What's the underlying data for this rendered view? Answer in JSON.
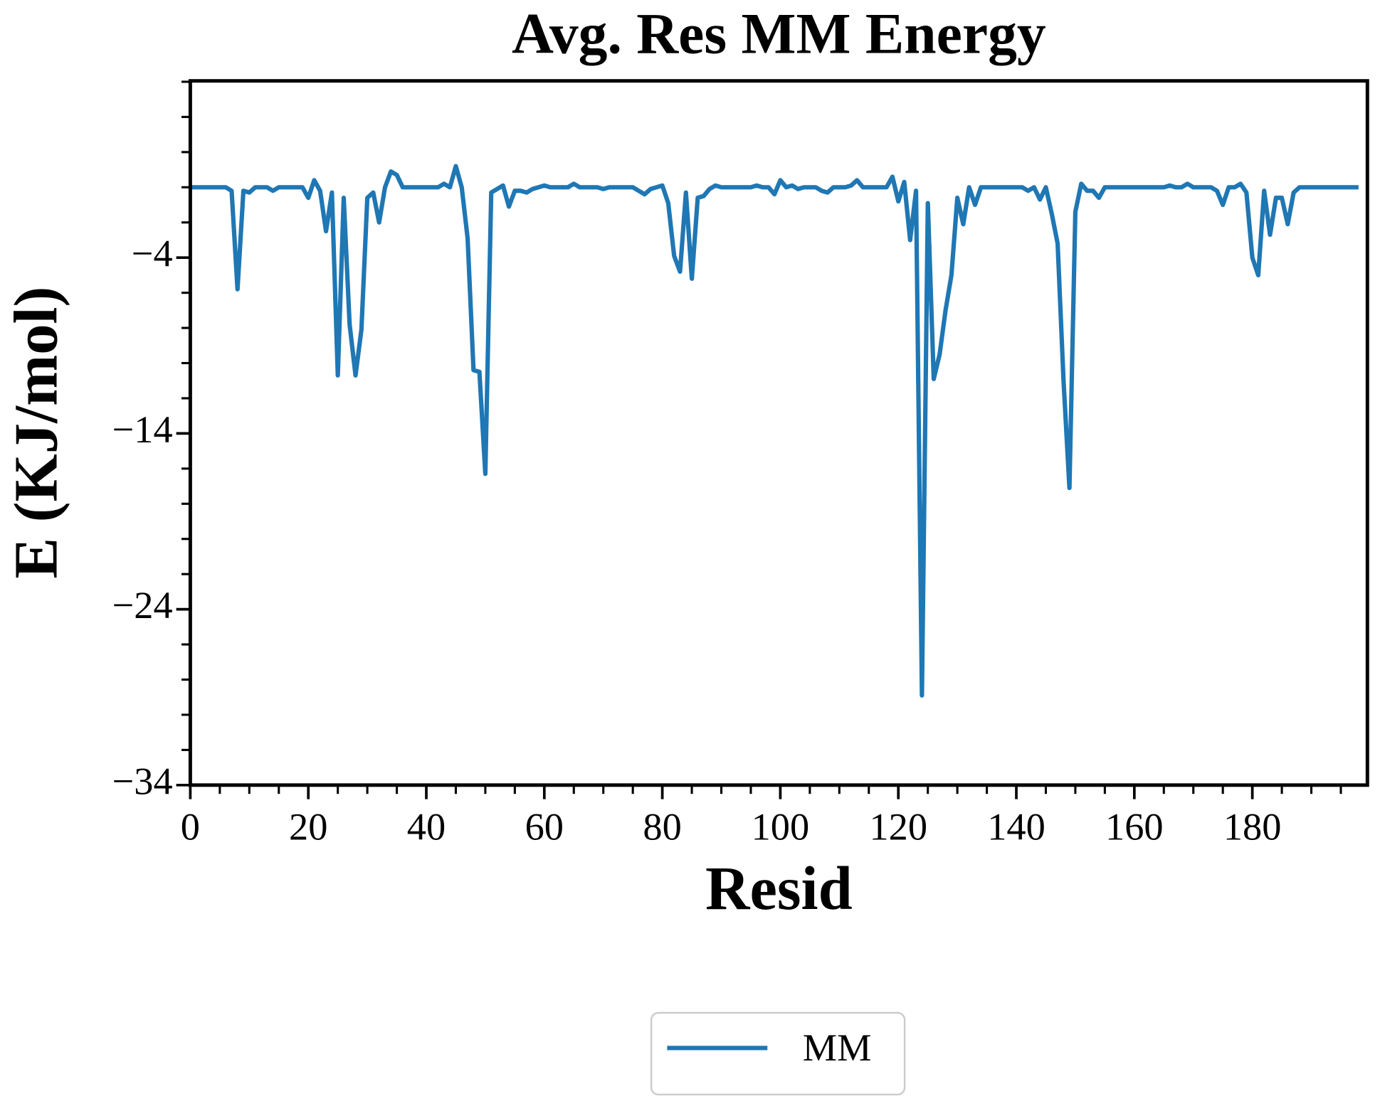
{
  "chart_data": {
    "type": "line",
    "title": "Avg. Res MM Energy",
    "x_label": "Resid",
    "y_label": "E (KJ/mol)",
    "x": [
      0,
      1,
      2,
      3,
      4,
      5,
      6,
      7,
      8,
      9,
      10,
      11,
      12,
      13,
      14,
      15,
      16,
      17,
      18,
      19,
      20,
      21,
      22,
      23,
      24,
      25,
      26,
      27,
      28,
      29,
      30,
      31,
      32,
      33,
      34,
      35,
      36,
      37,
      38,
      39,
      40,
      41,
      42,
      43,
      44,
      45,
      46,
      47,
      48,
      49,
      50,
      51,
      52,
      53,
      54,
      55,
      56,
      57,
      58,
      59,
      60,
      61,
      62,
      63,
      64,
      65,
      66,
      67,
      68,
      69,
      70,
      71,
      72,
      73,
      74,
      75,
      76,
      77,
      78,
      79,
      80,
      81,
      82,
      83,
      84,
      85,
      86,
      87,
      88,
      89,
      90,
      91,
      92,
      93,
      94,
      95,
      96,
      97,
      98,
      99,
      100,
      101,
      102,
      103,
      104,
      105,
      106,
      107,
      108,
      109,
      110,
      111,
      112,
      113,
      114,
      115,
      116,
      117,
      118,
      119,
      120,
      121,
      122,
      123,
      124,
      125,
      126,
      127,
      128,
      129,
      130,
      131,
      132,
      133,
      134,
      135,
      136,
      137,
      138,
      139,
      140,
      141,
      142,
      143,
      144,
      145,
      146,
      147,
      148,
      149,
      150,
      151,
      152,
      153,
      154,
      155,
      156,
      157,
      158,
      159,
      160,
      161,
      162,
      163,
      164,
      165,
      166,
      167,
      168,
      169,
      170,
      171,
      172,
      173,
      174,
      175,
      176,
      177,
      178,
      179,
      180,
      181,
      182,
      183,
      184,
      185,
      186,
      187,
      188,
      189,
      190,
      191,
      192,
      193,
      194,
      195,
      196,
      197,
      198
    ],
    "series": [
      {
        "name": "MM",
        "color": "#1f77b4",
        "values": [
          0,
          0,
          0,
          0,
          0,
          0,
          0,
          -0.2,
          -5.8,
          -0.2,
          -0.3,
          0,
          0,
          0,
          -0.2,
          0,
          0,
          0,
          0,
          0,
          -0.6,
          0.4,
          -0.2,
          -2.5,
          -0.3,
          -10.7,
          -0.6,
          -7.8,
          -10.7,
          -8.1,
          -0.6,
          -0.3,
          -2,
          0,
          0.9,
          0.7,
          0,
          0,
          0,
          0,
          0,
          0,
          0,
          0.2,
          0,
          1.2,
          0,
          -2.9,
          -10.4,
          -10.5,
          -16.3,
          -0.3,
          -0.1,
          0.1,
          -1.1,
          -0.2,
          -0.2,
          -0.3,
          -0.1,
          0,
          0.1,
          0,
          0,
          0,
          0,
          0.2,
          0,
          0,
          0,
          0,
          -0.1,
          0,
          0,
          0,
          0,
          0,
          -0.2,
          -0.4,
          -0.1,
          0,
          0.1,
          -0.9,
          -3.9,
          -4.8,
          -0.3,
          -5.2,
          -0.6,
          -0.5,
          -0.1,
          0.1,
          0,
          0,
          0,
          0,
          0,
          0,
          0.1,
          0,
          0,
          -0.4,
          0.4,
          0,
          0.1,
          -0.1,
          0,
          0,
          0,
          -0.2,
          -0.3,
          0,
          0,
          0,
          0.1,
          0.4,
          0,
          0,
          0,
          0,
          0,
          0.6,
          -0.8,
          0.3,
          -3,
          -0.2,
          -28.9,
          -0.9,
          -10.9,
          -9.5,
          -7,
          -5,
          -0.6,
          -2.1,
          0,
          -1,
          0,
          0,
          0,
          0,
          0,
          0,
          0,
          0,
          -0.2,
          0,
          -0.7,
          0,
          -1.5,
          -3.2,
          -11,
          -17.1,
          -1.4,
          0.2,
          -0.2,
          -0.2,
          -0.6,
          0,
          0,
          0,
          0,
          0,
          0,
          0,
          0,
          0,
          0,
          0,
          0.1,
          0,
          0,
          0.2,
          0,
          0,
          0,
          0,
          -0.2,
          -1,
          0,
          0,
          0.2,
          -0.3,
          -4,
          -5,
          -0.2,
          -2.7,
          -0.6,
          -0.6,
          -2.1,
          -0.3,
          0,
          0,
          0,
          0,
          0,
          0,
          0,
          0,
          0,
          0,
          0
        ]
      }
    ],
    "xlim": [
      0,
      199.5
    ],
    "ylim": [
      -34,
      6.05
    ],
    "xticks": [
      0,
      20,
      40,
      60,
      80,
      100,
      120,
      140,
      160,
      180
    ],
    "xminorticks": [
      5,
      10,
      15,
      25,
      30,
      35,
      45,
      50,
      55,
      65,
      70,
      75,
      85,
      90,
      95,
      105,
      110,
      115,
      125,
      130,
      135,
      145,
      150,
      155,
      165,
      170,
      175,
      185,
      190,
      195
    ],
    "yticks": [
      {
        "value": -34,
        "label": "−34"
      },
      {
        "value": -24,
        "label": "−24"
      },
      {
        "value": -14,
        "label": "−14"
      },
      {
        "value": -4,
        "label": "−4"
      }
    ],
    "yminorticks": [
      -32,
      -30,
      -28,
      -26,
      -22,
      -20,
      -18,
      -16,
      -12,
      -10,
      -8,
      -6,
      -2,
      0,
      2,
      4,
      6
    ],
    "grid": false,
    "legend": "bottom-center"
  }
}
